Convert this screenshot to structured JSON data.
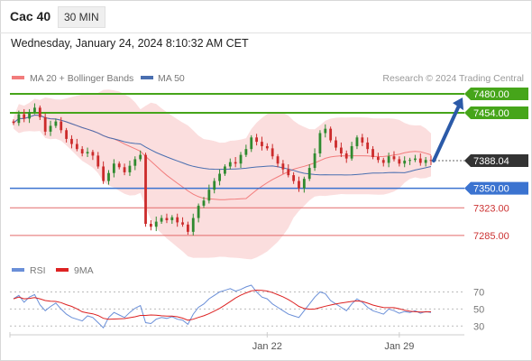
{
  "header": {
    "instrument": "Cac 40",
    "timeframe": "30 MIN"
  },
  "datetime": "Wednesday, January 24, 2024 8:10:32 AM CET",
  "legend": {
    "ma20": "MA 20 + Bollinger Bands",
    "ma50": "MA 50",
    "credit": "Research © 2024 Trading Central"
  },
  "colors": {
    "up": "#2f8a2f",
    "down": "#cc2b2b",
    "band": "#f9d3d3",
    "ma20": "#f27c7c",
    "ma50": "#4a6fb0",
    "target": "#46a51a",
    "pivot": "#3b73d0",
    "support": "#e46a6a",
    "arrow": "#2b5aa8",
    "last": "#333333",
    "rsi": "#6a8fd8",
    "rsi_ma": "#dd2222"
  },
  "chart_data": [
    {
      "type": "candlestick",
      "title": "Cac 40",
      "xlabel": "",
      "ylabel": "",
      "ylim": [
        7255,
        7490
      ],
      "grid": false,
      "x_ticks": [
        {
          "label": "Jan 22",
          "index": 48
        },
        {
          "label": "Jan 29",
          "index": 73
        }
      ],
      "levels": [
        {
          "value": 7480.0,
          "label": "7480.00",
          "kind": "target"
        },
        {
          "value": 7454.0,
          "label": "7454.00",
          "kind": "target"
        },
        {
          "value": 7350.0,
          "label": "7350.00",
          "kind": "pivot"
        },
        {
          "value": 7323.0,
          "label": "7323.00",
          "kind": "support"
        },
        {
          "value": 7285.0,
          "label": "7285.00",
          "kind": "support"
        }
      ],
      "last_price": {
        "value": 7388.04,
        "label": "7388.04"
      },
      "forecast_arrow": {
        "from": 7388,
        "to": 7475
      },
      "series": [
        {
          "name": "MA 20 + Bollinger Bands"
        },
        {
          "name": "MA 50"
        }
      ],
      "closes": [
        7440,
        7452,
        7446,
        7455,
        7461,
        7448,
        7428,
        7436,
        7442,
        7430,
        7418,
        7411,
        7404,
        7398,
        7400,
        7395,
        7380,
        7360,
        7371,
        7384,
        7379,
        7372,
        7381,
        7390,
        7396,
        7301,
        7297,
        7304,
        7309,
        7306,
        7310,
        7303,
        7300,
        7290,
        7309,
        7326,
        7333,
        7348,
        7360,
        7370,
        7380,
        7386,
        7384,
        7396,
        7404,
        7420,
        7414,
        7408,
        7405,
        7394,
        7384,
        7376,
        7368,
        7360,
        7350,
        7363,
        7378,
        7398,
        7426,
        7432,
        7416,
        7406,
        7398,
        7391,
        7408,
        7420,
        7413,
        7404,
        7393,
        7389,
        7385,
        7394,
        7390,
        7384,
        7388,
        7389,
        7391,
        7385,
        7389,
        7388
      ]
    },
    {
      "type": "line",
      "title": "RSI",
      "ylim": [
        25,
        78
      ],
      "ticks": [
        70,
        50,
        30
      ],
      "series": [
        {
          "name": "RSI",
          "values": [
            62,
            66,
            58,
            64,
            67,
            55,
            48,
            53,
            57,
            50,
            44,
            40,
            38,
            36,
            42,
            40,
            34,
            28,
            40,
            46,
            43,
            40,
            46,
            51,
            54,
            34,
            33,
            38,
            40,
            39,
            41,
            38,
            37,
            32,
            44,
            52,
            56,
            62,
            66,
            70,
            72,
            74,
            71,
            73,
            76,
            78,
            70,
            64,
            62,
            56,
            52,
            48,
            44,
            42,
            40,
            48,
            56,
            64,
            70,
            68,
            60,
            56,
            52,
            48,
            56,
            62,
            58,
            52,
            48,
            46,
            44,
            50,
            48,
            45,
            47,
            46,
            48,
            45,
            47,
            46
          ]
        },
        {
          "name": "9MA"
        }
      ]
    }
  ]
}
